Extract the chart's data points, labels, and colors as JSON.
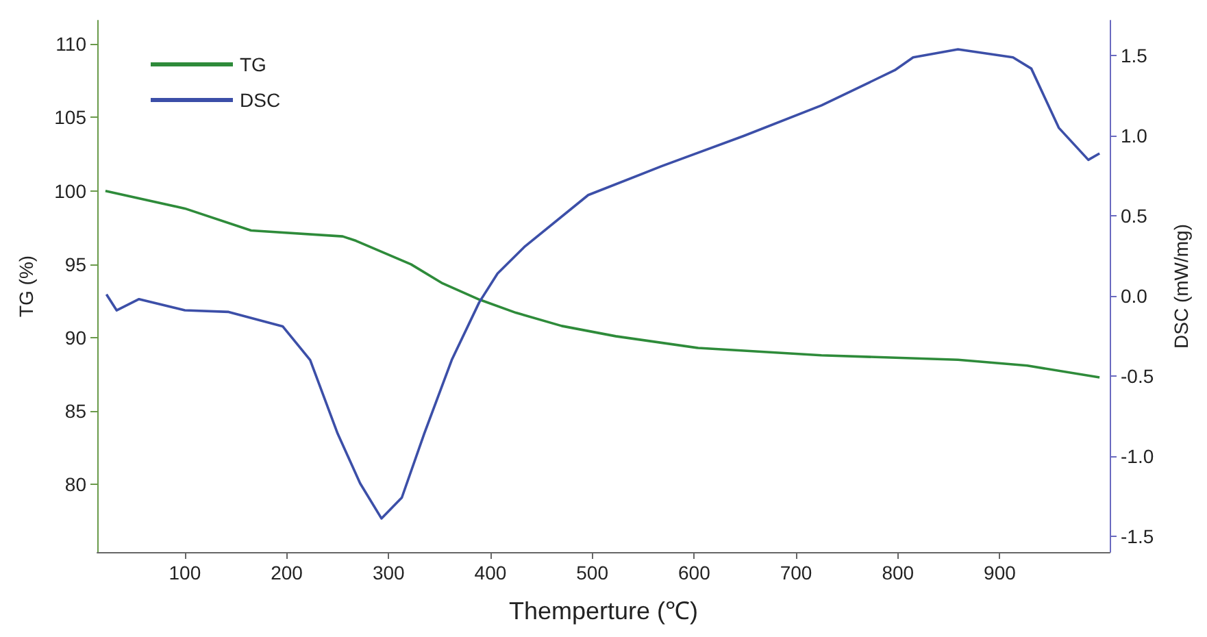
{
  "chart_data": {
    "type": "line",
    "xlabel": "Themperture (℃)",
    "ylabel": "TG (%)",
    "y2label": "DSC (mW/mg)",
    "xlim": [
      14,
      1008
    ],
    "xticks": [
      100,
      200,
      300,
      400,
      500,
      600,
      700,
      800,
      900
    ],
    "ylim": [
      75.4,
      111.6
    ],
    "yticks": [
      80,
      85,
      90,
      95,
      100,
      105,
      110
    ],
    "y2lim": [
      -1.6,
      1.72
    ],
    "y2ticks": [
      -1.5,
      {
        "value": -1,
        "label": "-1.0"
      },
      -0.5,
      {
        "value": 0,
        "label": "0.0"
      },
      0.5,
      {
        "value": 1,
        "label": "1.0"
      },
      1.5
    ],
    "legend": "top left",
    "marker": "none",
    "line_style": "solid",
    "series": [
      {
        "name": "TG",
        "color": "#2e8b3a",
        "x": [
          22,
          100,
          165,
          255,
          268,
          322,
          353,
          389,
          425,
          470,
          523,
          604,
          725,
          859,
          927,
          998
        ],
        "values": [
          100,
          98.8,
          97.3,
          96.9,
          96.6,
          95.0,
          93.7,
          92.6,
          91.7,
          90.8,
          90.1,
          89.3,
          88.8,
          88.5,
          88.1,
          87.3
        ]
      },
      {
        "name": "DSC",
        "color": "#3c4fa8",
        "axis": "y2",
        "x": [
          23,
          33,
          55,
          100,
          143,
          196,
          223,
          250,
          272,
          293,
          313,
          335,
          362,
          389,
          407,
          434,
          496,
          568,
          649,
          725,
          797,
          815,
          859,
          913,
          931,
          958,
          987,
          998
        ],
        "values": [
          0.01,
          -0.09,
          -0.02,
          -0.09,
          -0.1,
          -0.19,
          -0.4,
          -0.86,
          -1.17,
          -1.39,
          -1.26,
          -0.86,
          -0.4,
          -0.04,
          0.14,
          0.31,
          0.63,
          0.81,
          1.0,
          1.19,
          1.41,
          1.49,
          1.54,
          1.49,
          1.42,
          1.05,
          0.85,
          0.89
        ]
      }
    ]
  }
}
